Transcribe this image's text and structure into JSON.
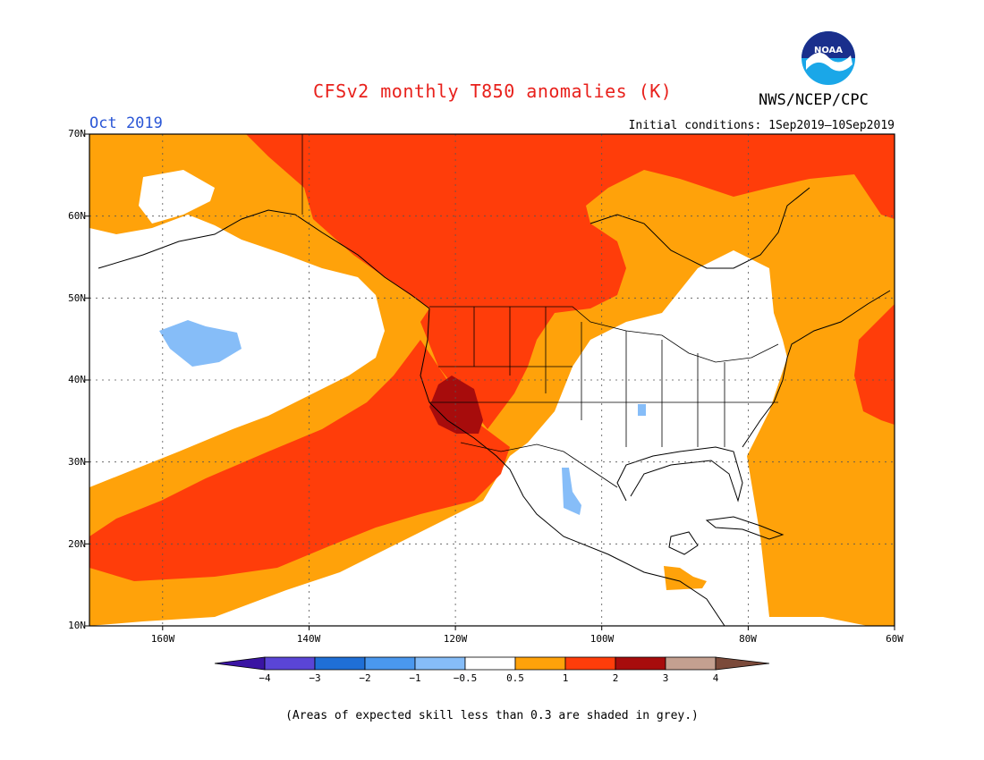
{
  "title": "CFSv2 monthly T850 anomalies (K)",
  "agency": "NWS/NCEP/CPC",
  "logo_text": "NOAA",
  "month": "Oct 2019",
  "initial_conditions": "Initial conditions: 1Sep2019–10Sep2019",
  "lat_labels": [
    "70N",
    "60N",
    "50N",
    "40N",
    "30N",
    "20N",
    "10N"
  ],
  "lon_labels": [
    "160W",
    "140W",
    "120W",
    "100W",
    "80W",
    "60W"
  ],
  "colorbar": {
    "labels": [
      "−4",
      "−3",
      "−2",
      "−1",
      "−0.5",
      "0.5",
      "1",
      "2",
      "3",
      "4"
    ],
    "colors": [
      "#3a14a3",
      "#5a45d6",
      "#1f6fd6",
      "#4a98ee",
      "#86bdf8",
      "#ffffff",
      "#ffa20a",
      "#ff3d0a",
      "#a70c0c",
      "#c4a090",
      "#7b4a3a"
    ],
    "units": "K"
  },
  "footnote": "(Areas of expected skill less than 0.3 are shaded in grey.)"
}
